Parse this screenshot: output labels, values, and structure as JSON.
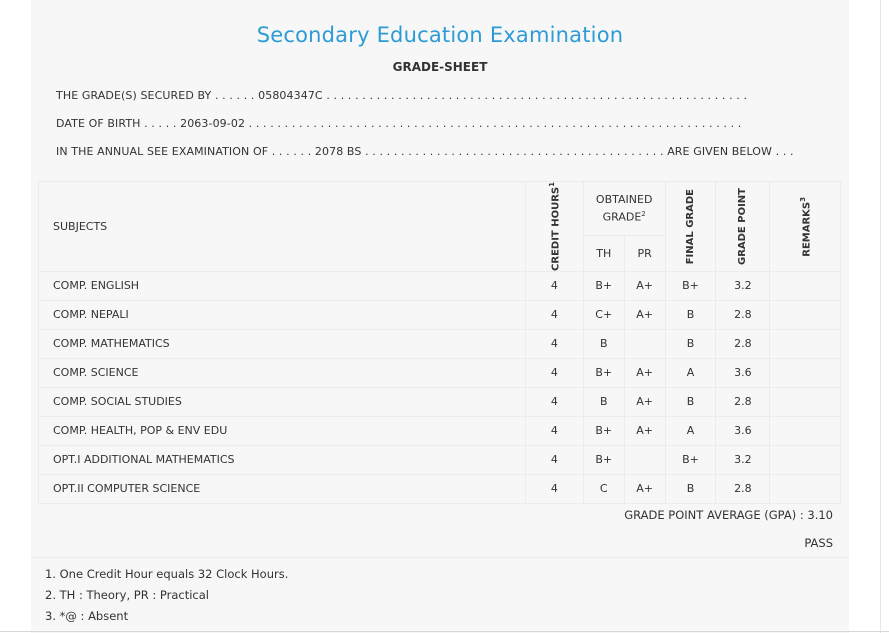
{
  "header": {
    "title": "Secondary Education Examination",
    "subtitle": "GRADE-SHEET"
  },
  "info": {
    "secured_by_label": "THE GRADE(S) SECURED BY . . . . . .",
    "secured_by_value": "05804347C",
    "dob_label": "DATE OF BIRTH . . . . .",
    "dob_value": "2063-09-02",
    "exam_label": "IN THE ANNUAL SEE EXAMINATION OF . . . . . .",
    "exam_value": "2078 BS",
    "exam_suffix": "ARE GIVEN BELOW . . ."
  },
  "table": {
    "headers": {
      "subjects": "SUBJECTS",
      "credit_hours": "CREDIT HOURS",
      "credit_hours_sup": "1",
      "obtained_grade": "OBTAINED GRADE",
      "obtained_grade_sup": "2",
      "th": "TH",
      "pr": "PR",
      "final_grade": "FINAL GRADE",
      "grade_point": "GRADE POINT",
      "remarks": "REMARKS",
      "remarks_sup": "3"
    },
    "rows": [
      {
        "subject": "COMP. ENGLISH",
        "credit": "4",
        "th": "B+",
        "pr": "A+",
        "final": "B+",
        "gp": "3.2",
        "remarks": ""
      },
      {
        "subject": "COMP. NEPALI",
        "credit": "4",
        "th": "C+",
        "pr": "A+",
        "final": "B",
        "gp": "2.8",
        "remarks": ""
      },
      {
        "subject": "COMP. MATHEMATICS",
        "credit": "4",
        "th": "B",
        "pr": "",
        "final": "B",
        "gp": "2.8",
        "remarks": ""
      },
      {
        "subject": "COMP. SCIENCE",
        "credit": "4",
        "th": "B+",
        "pr": "A+",
        "final": "A",
        "gp": "3.6",
        "remarks": ""
      },
      {
        "subject": "COMP. SOCIAL STUDIES",
        "credit": "4",
        "th": "B",
        "pr": "A+",
        "final": "B",
        "gp": "2.8",
        "remarks": ""
      },
      {
        "subject": "COMP. HEALTH, POP & ENV EDU",
        "credit": "4",
        "th": "B+",
        "pr": "A+",
        "final": "A",
        "gp": "3.6",
        "remarks": ""
      },
      {
        "subject": "OPT.I ADDITIONAL MATHEMATICS",
        "credit": "4",
        "th": "B+",
        "pr": "",
        "final": "B+",
        "gp": "3.2",
        "remarks": ""
      },
      {
        "subject": "OPT.II COMPUTER SCIENCE",
        "credit": "4",
        "th": "C",
        "pr": "A+",
        "final": "B",
        "gp": "2.8",
        "remarks": ""
      }
    ]
  },
  "summary": {
    "gpa_text": "GRADE POINT AVERAGE (GPA) : 3.10",
    "result": "PASS"
  },
  "footnotes": [
    "1. One Credit Hour equals 32 Clock Hours.",
    "2. TH : Theory, PR : Practical",
    "3. *@ : Absent"
  ],
  "colors": {
    "title": "#2d9bd6",
    "sheet_background": "#f7f7f7",
    "grid_line": "#ececec"
  }
}
